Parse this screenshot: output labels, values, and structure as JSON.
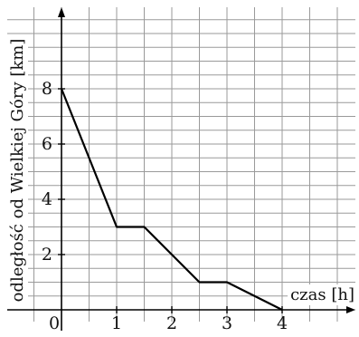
{
  "chart_data": {
    "type": "line",
    "xlabel": "czas [h]",
    "ylabel": "odległość od Wielkiej Góry [km]",
    "x_ticks": [
      "0",
      "1",
      "2",
      "3",
      "4"
    ],
    "y_ticks": [
      "2",
      "4",
      "6",
      "8"
    ],
    "xlim": [
      0,
      5.5
    ],
    "ylim": [
      -0.15,
      10.85
    ],
    "grid": true,
    "series": [
      {
        "x": [
          0,
          1,
          1.5,
          2.5,
          3,
          4
        ],
        "y": [
          8,
          3,
          3,
          1,
          1,
          0
        ]
      }
    ]
  }
}
